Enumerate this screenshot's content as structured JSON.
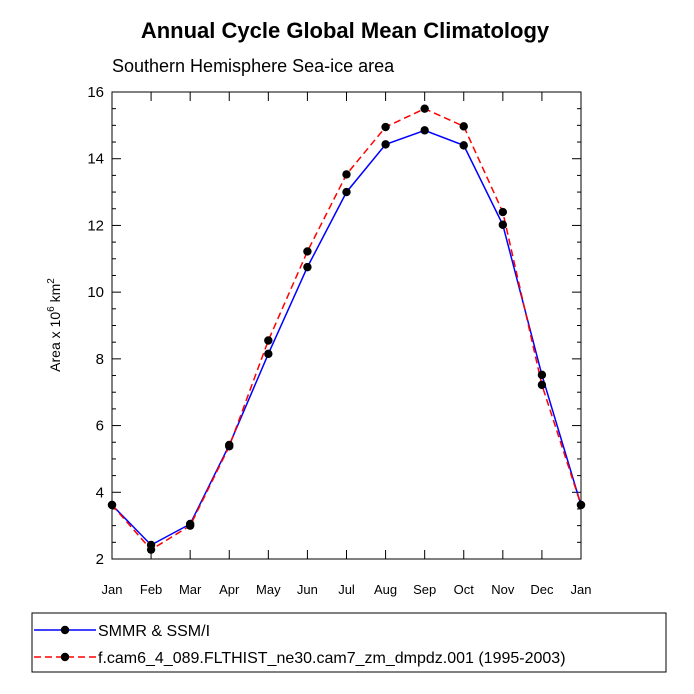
{
  "chart_data": {
    "type": "line",
    "title": "Annual Cycle Global Mean Climatology",
    "subtitle": "Southern Hemisphere Sea-ice area",
    "ylabel": {
      "base": "Area x 10",
      "exp1": "6",
      "unit": " km",
      "exp2": "2"
    },
    "xlabel": "",
    "categories": [
      "Jan",
      "Feb",
      "Mar",
      "Apr",
      "May",
      "Jun",
      "Jul",
      "Aug",
      "Sep",
      "Oct",
      "Nov",
      "Dec",
      "Jan"
    ],
    "ylim": [
      2,
      16
    ],
    "yticks": [
      2,
      4,
      6,
      8,
      10,
      12,
      14,
      16
    ],
    "grid": false,
    "legend_position": "bottom",
    "series": [
      {
        "name": "SMMR & SSM/I",
        "color": "#0000ff",
        "dash": "solid",
        "marker": "filled-circle",
        "values": [
          3.62,
          2.42,
          3.05,
          5.42,
          8.15,
          10.75,
          13.0,
          14.43,
          14.85,
          14.4,
          12.02,
          7.52,
          3.62
        ]
      },
      {
        "name": "f.cam6_4_089.FLTHIST_ne30.cam7_zm_dmpdz.001 (1995-2003)",
        "color": "#ff0000",
        "dash": "dashed",
        "marker": "filled-circle",
        "values": [
          3.62,
          2.28,
          3.0,
          5.38,
          8.55,
          11.22,
          13.53,
          14.95,
          15.5,
          14.97,
          12.4,
          7.22,
          3.62
        ]
      }
    ]
  }
}
